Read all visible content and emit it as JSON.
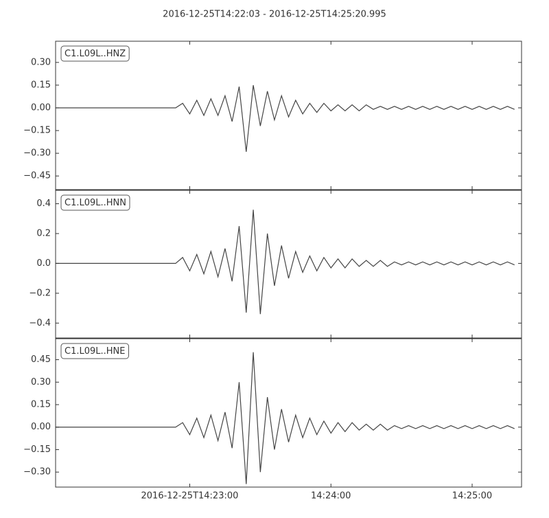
{
  "title": "2016-12-25T14:22:03  -  2016-12-25T14:25:20.995",
  "chart_data": [
    {
      "type": "line",
      "label": "C1.L09L..HNZ",
      "color": "#444444",
      "x": [
        "2016-12-25T14:22:03",
        "2016-12-25T14:22:06",
        "2016-12-25T14:22:09",
        "2016-12-25T14:22:12",
        "2016-12-25T14:22:15",
        "2016-12-25T14:22:18",
        "2016-12-25T14:22:21",
        "2016-12-25T14:22:24",
        "2016-12-25T14:22:27",
        "2016-12-25T14:22:30",
        "2016-12-25T14:22:33",
        "2016-12-25T14:22:36",
        "2016-12-25T14:22:39",
        "2016-12-25T14:22:42",
        "2016-12-25T14:22:45",
        "2016-12-25T14:22:48",
        "2016-12-25T14:22:51",
        "2016-12-25T14:22:54",
        "2016-12-25T14:22:57",
        "2016-12-25T14:23:00",
        "2016-12-25T14:23:03",
        "2016-12-25T14:23:06",
        "2016-12-25T14:23:09",
        "2016-12-25T14:23:12",
        "2016-12-25T14:23:15",
        "2016-12-25T14:23:18",
        "2016-12-25T14:23:21",
        "2016-12-25T14:23:24",
        "2016-12-25T14:23:27",
        "2016-12-25T14:23:30",
        "2016-12-25T14:23:33",
        "2016-12-25T14:23:36",
        "2016-12-25T14:23:39",
        "2016-12-25T14:23:42",
        "2016-12-25T14:23:45",
        "2016-12-25T14:23:48",
        "2016-12-25T14:23:51",
        "2016-12-25T14:23:54",
        "2016-12-25T14:23:57",
        "2016-12-25T14:24:00",
        "2016-12-25T14:24:03",
        "2016-12-25T14:24:06",
        "2016-12-25T14:24:09",
        "2016-12-25T14:24:12",
        "2016-12-25T14:24:15",
        "2016-12-25T14:24:18",
        "2016-12-25T14:24:21",
        "2016-12-25T14:24:24",
        "2016-12-25T14:24:27",
        "2016-12-25T14:24:30",
        "2016-12-25T14:24:33",
        "2016-12-25T14:24:36",
        "2016-12-25T14:24:39",
        "2016-12-25T14:24:42",
        "2016-12-25T14:24:45",
        "2016-12-25T14:24:48",
        "2016-12-25T14:24:51",
        "2016-12-25T14:24:54",
        "2016-12-25T14:24:57",
        "2016-12-25T14:25:00",
        "2016-12-25T14:25:03",
        "2016-12-25T14:25:06",
        "2016-12-25T14:25:09",
        "2016-12-25T14:25:12",
        "2016-12-25T14:25:15",
        "2016-12-25T14:25:18"
      ],
      "values": [
        0,
        0,
        0,
        0,
        0,
        0,
        0,
        0,
        0,
        0,
        0,
        0,
        0,
        0,
        0,
        0,
        0,
        0,
        0.03,
        -0.04,
        0.05,
        -0.05,
        0.06,
        -0.05,
        0.08,
        -0.09,
        0.14,
        -0.29,
        0.15,
        -0.12,
        0.11,
        -0.08,
        0.08,
        -0.06,
        0.05,
        -0.04,
        0.03,
        -0.03,
        0.03,
        -0.02,
        0.02,
        -0.02,
        0.02,
        -0.02,
        0.02,
        -0.01,
        0.01,
        -0.01,
        0.01,
        -0.01,
        0.01,
        -0.01,
        0.01,
        -0.01,
        0.01,
        -0.01,
        0.01,
        -0.01,
        0.01,
        -0.01,
        0.01,
        -0.01,
        0.01,
        -0.01,
        0.01,
        -0.01
      ],
      "xlim": [
        "2016-12-25T14:22:03",
        "2016-12-25T14:25:20.995"
      ],
      "xticks": [
        "2016-12-25T14:23:00",
        "2016-12-25T14:24:00",
        "2016-12-25T14:25:00"
      ],
      "ylim": [
        -0.54,
        0.44
      ],
      "yticks": [
        {
          "value": -0.45,
          "label": "−0.45"
        },
        {
          "value": -0.3,
          "label": "−0.30"
        },
        {
          "value": -0.15,
          "label": "−0.15"
        },
        {
          "value": 0,
          "label": "0.00"
        },
        0.15,
        {
          "value": 0.3,
          "label": "0.30"
        }
      ]
    },
    {
      "type": "line",
      "label": "C1.L09L..HNN",
      "color": "#444444",
      "x": [
        "2016-12-25T14:22:03",
        "2016-12-25T14:22:06",
        "2016-12-25T14:22:09",
        "2016-12-25T14:22:12",
        "2016-12-25T14:22:15",
        "2016-12-25T14:22:18",
        "2016-12-25T14:22:21",
        "2016-12-25T14:22:24",
        "2016-12-25T14:22:27",
        "2016-12-25T14:22:30",
        "2016-12-25T14:22:33",
        "2016-12-25T14:22:36",
        "2016-12-25T14:22:39",
        "2016-12-25T14:22:42",
        "2016-12-25T14:22:45",
        "2016-12-25T14:22:48",
        "2016-12-25T14:22:51",
        "2016-12-25T14:22:54",
        "2016-12-25T14:22:57",
        "2016-12-25T14:23:00",
        "2016-12-25T14:23:03",
        "2016-12-25T14:23:06",
        "2016-12-25T14:23:09",
        "2016-12-25T14:23:12",
        "2016-12-25T14:23:15",
        "2016-12-25T14:23:18",
        "2016-12-25T14:23:21",
        "2016-12-25T14:23:24",
        "2016-12-25T14:23:27",
        "2016-12-25T14:23:30",
        "2016-12-25T14:23:33",
        "2016-12-25T14:23:36",
        "2016-12-25T14:23:39",
        "2016-12-25T14:23:42",
        "2016-12-25T14:23:45",
        "2016-12-25T14:23:48",
        "2016-12-25T14:23:51",
        "2016-12-25T14:23:54",
        "2016-12-25T14:23:57",
        "2016-12-25T14:24:00",
        "2016-12-25T14:24:03",
        "2016-12-25T14:24:06",
        "2016-12-25T14:24:09",
        "2016-12-25T14:24:12",
        "2016-12-25T14:24:15",
        "2016-12-25T14:24:18",
        "2016-12-25T14:24:21",
        "2016-12-25T14:24:24",
        "2016-12-25T14:24:27",
        "2016-12-25T14:24:30",
        "2016-12-25T14:24:33",
        "2016-12-25T14:24:36",
        "2016-12-25T14:24:39",
        "2016-12-25T14:24:42",
        "2016-12-25T14:24:45",
        "2016-12-25T14:24:48",
        "2016-12-25T14:24:51",
        "2016-12-25T14:24:54",
        "2016-12-25T14:24:57",
        "2016-12-25T14:25:00",
        "2016-12-25T14:25:03",
        "2016-12-25T14:25:06",
        "2016-12-25T14:25:09",
        "2016-12-25T14:25:12",
        "2016-12-25T14:25:15",
        "2016-12-25T14:25:18"
      ],
      "values": [
        0,
        0,
        0,
        0,
        0,
        0,
        0,
        0,
        0,
        0,
        0,
        0,
        0,
        0,
        0,
        0,
        0,
        0,
        0.04,
        -0.05,
        0.06,
        -0.07,
        0.08,
        -0.09,
        0.1,
        -0.12,
        0.25,
        -0.33,
        0.36,
        -0.34,
        0.2,
        -0.15,
        0.12,
        -0.1,
        0.08,
        -0.06,
        0.05,
        -0.05,
        0.04,
        -0.03,
        0.03,
        -0.03,
        0.03,
        -0.02,
        0.02,
        -0.02,
        0.02,
        -0.02,
        0.01,
        -0.01,
        0.01,
        -0.01,
        0.01,
        -0.01,
        0.01,
        -0.01,
        0.01,
        -0.01,
        0.01,
        -0.01,
        0.01,
        -0.01,
        0.01,
        -0.01,
        0.01,
        -0.01
      ],
      "xlim": [
        "2016-12-25T14:22:03",
        "2016-12-25T14:25:20.995"
      ],
      "xticks": [
        "2016-12-25T14:23:00",
        "2016-12-25T14:24:00",
        "2016-12-25T14:25:00"
      ],
      "ylim": [
        -0.5,
        0.49
      ],
      "yticks": [
        {
          "value": -0.4,
          "label": "−0.4"
        },
        {
          "value": -0.2,
          "label": "−0.2"
        },
        {
          "value": 0,
          "label": "0.0"
        },
        0.2,
        0.4
      ]
    },
    {
      "type": "line",
      "label": "C1.L09L..HNE",
      "color": "#444444",
      "x": [
        "2016-12-25T14:22:03",
        "2016-12-25T14:22:06",
        "2016-12-25T14:22:09",
        "2016-12-25T14:22:12",
        "2016-12-25T14:22:15",
        "2016-12-25T14:22:18",
        "2016-12-25T14:22:21",
        "2016-12-25T14:22:24",
        "2016-12-25T14:22:27",
        "2016-12-25T14:22:30",
        "2016-12-25T14:22:33",
        "2016-12-25T14:22:36",
        "2016-12-25T14:22:39",
        "2016-12-25T14:22:42",
        "2016-12-25T14:22:45",
        "2016-12-25T14:22:48",
        "2016-12-25T14:22:51",
        "2016-12-25T14:22:54",
        "2016-12-25T14:22:57",
        "2016-12-25T14:23:00",
        "2016-12-25T14:23:03",
        "2016-12-25T14:23:06",
        "2016-12-25T14:23:09",
        "2016-12-25T14:23:12",
        "2016-12-25T14:23:15",
        "2016-12-25T14:23:18",
        "2016-12-25T14:23:21",
        "2016-12-25T14:23:24",
        "2016-12-25T14:23:27",
        "2016-12-25T14:23:30",
        "2016-12-25T14:23:33",
        "2016-12-25T14:23:36",
        "2016-12-25T14:23:39",
        "2016-12-25T14:23:42",
        "2016-12-25T14:23:45",
        "2016-12-25T14:23:48",
        "2016-12-25T14:23:51",
        "2016-12-25T14:23:54",
        "2016-12-25T14:23:57",
        "2016-12-25T14:24:00",
        "2016-12-25T14:24:03",
        "2016-12-25T14:24:06",
        "2016-12-25T14:24:09",
        "2016-12-25T14:24:12",
        "2016-12-25T14:24:15",
        "2016-12-25T14:24:18",
        "2016-12-25T14:24:21",
        "2016-12-25T14:24:24",
        "2016-12-25T14:24:27",
        "2016-12-25T14:24:30",
        "2016-12-25T14:24:33",
        "2016-12-25T14:24:36",
        "2016-12-25T14:24:39",
        "2016-12-25T14:24:42",
        "2016-12-25T14:24:45",
        "2016-12-25T14:24:48",
        "2016-12-25T14:24:51",
        "2016-12-25T14:24:54",
        "2016-12-25T14:24:57",
        "2016-12-25T14:25:00",
        "2016-12-25T14:25:03",
        "2016-12-25T14:25:06",
        "2016-12-25T14:25:09",
        "2016-12-25T14:25:12",
        "2016-12-25T14:25:15",
        "2016-12-25T14:25:18"
      ],
      "values": [
        0,
        0,
        0,
        0,
        0,
        0,
        0,
        0,
        0,
        0,
        0,
        0,
        0,
        0,
        0,
        0,
        0,
        0,
        0.03,
        -0.05,
        0.06,
        -0.07,
        0.08,
        -0.09,
        0.1,
        -0.14,
        0.3,
        -0.38,
        0.5,
        -0.3,
        0.2,
        -0.15,
        0.12,
        -0.1,
        0.08,
        -0.07,
        0.06,
        -0.05,
        0.04,
        -0.04,
        0.03,
        -0.03,
        0.03,
        -0.02,
        0.02,
        -0.02,
        0.02,
        -0.02,
        0.01,
        -0.01,
        0.01,
        -0.01,
        0.01,
        -0.01,
        0.01,
        -0.01,
        0.01,
        -0.01,
        0.01,
        -0.01,
        0.01,
        -0.01,
        0.01,
        -0.01,
        0.01,
        -0.01
      ],
      "xlim": [
        "2016-12-25T14:22:03",
        "2016-12-25T14:25:20.995"
      ],
      "xticks": [
        "2016-12-25T14:23:00",
        {
          "value": "2016-12-25T14:24:00",
          "label": "14:24:00"
        },
        {
          "value": "2016-12-25T14:25:00",
          "label": "14:25:00"
        }
      ],
      "ylim": [
        -0.4,
        0.59
      ],
      "yticks": [
        {
          "value": -0.3,
          "label": "−0.30"
        },
        {
          "value": -0.15,
          "label": "−0.15"
        },
        {
          "value": 0,
          "label": "0.00"
        },
        0.15,
        {
          "value": 0.3,
          "label": "0.30"
        },
        0.45
      ]
    }
  ]
}
